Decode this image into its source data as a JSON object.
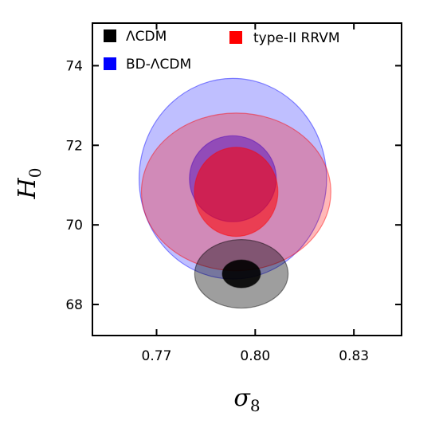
{
  "chart_data": {
    "type": "contour",
    "xlabel": "σ",
    "xlabel_sub": "8",
    "ylabel": "H",
    "ylabel_sub": "0",
    "xlim": [
      0.7505,
      0.8445
    ],
    "ylim": [
      67.22,
      75.07
    ],
    "xticks": [
      0.77,
      0.8,
      0.83
    ],
    "xtick_labels": [
      "0.77",
      "0.80",
      "0.83"
    ],
    "yticks": [
      68,
      70,
      72,
      74
    ],
    "ytick_labels": [
      "68",
      "70",
      "72",
      "74"
    ],
    "legend_position": "top-left",
    "series": [
      {
        "name": "ΛCDM",
        "color": "#000000",
        "center": [
          0.7958,
          68.77
        ],
        "contours": [
          {
            "level": "68%",
            "sigma_x": 0.0058,
            "sigma_y": 0.35,
            "opacity": 0.9
          },
          {
            "level": "95%",
            "sigma_x": 0.0142,
            "sigma_y": 0.86,
            "opacity": 0.38
          }
        ]
      },
      {
        "name": "BD-ΛCDM",
        "color": "#0000ff",
        "center": [
          0.7932,
          71.16
        ],
        "contours": [
          {
            "level": "68%",
            "sigma_x": 0.0132,
            "sigma_y": 1.08,
            "opacity": 0.45
          },
          {
            "level": "95%",
            "sigma_x": 0.0285,
            "sigma_y": 2.52,
            "opacity": 0.25
          }
        ]
      },
      {
        "name": "type-II RRVM",
        "color": "#ff0000",
        "center": [
          0.7942,
          70.83
        ],
        "contours": [
          {
            "level": "68%",
            "sigma_x": 0.0127,
            "sigma_y": 1.12,
            "opacity": 0.55
          },
          {
            "level": "95%",
            "sigma_x": 0.0288,
            "sigma_y": 1.98,
            "opacity": 0.28
          }
        ]
      }
    ]
  }
}
